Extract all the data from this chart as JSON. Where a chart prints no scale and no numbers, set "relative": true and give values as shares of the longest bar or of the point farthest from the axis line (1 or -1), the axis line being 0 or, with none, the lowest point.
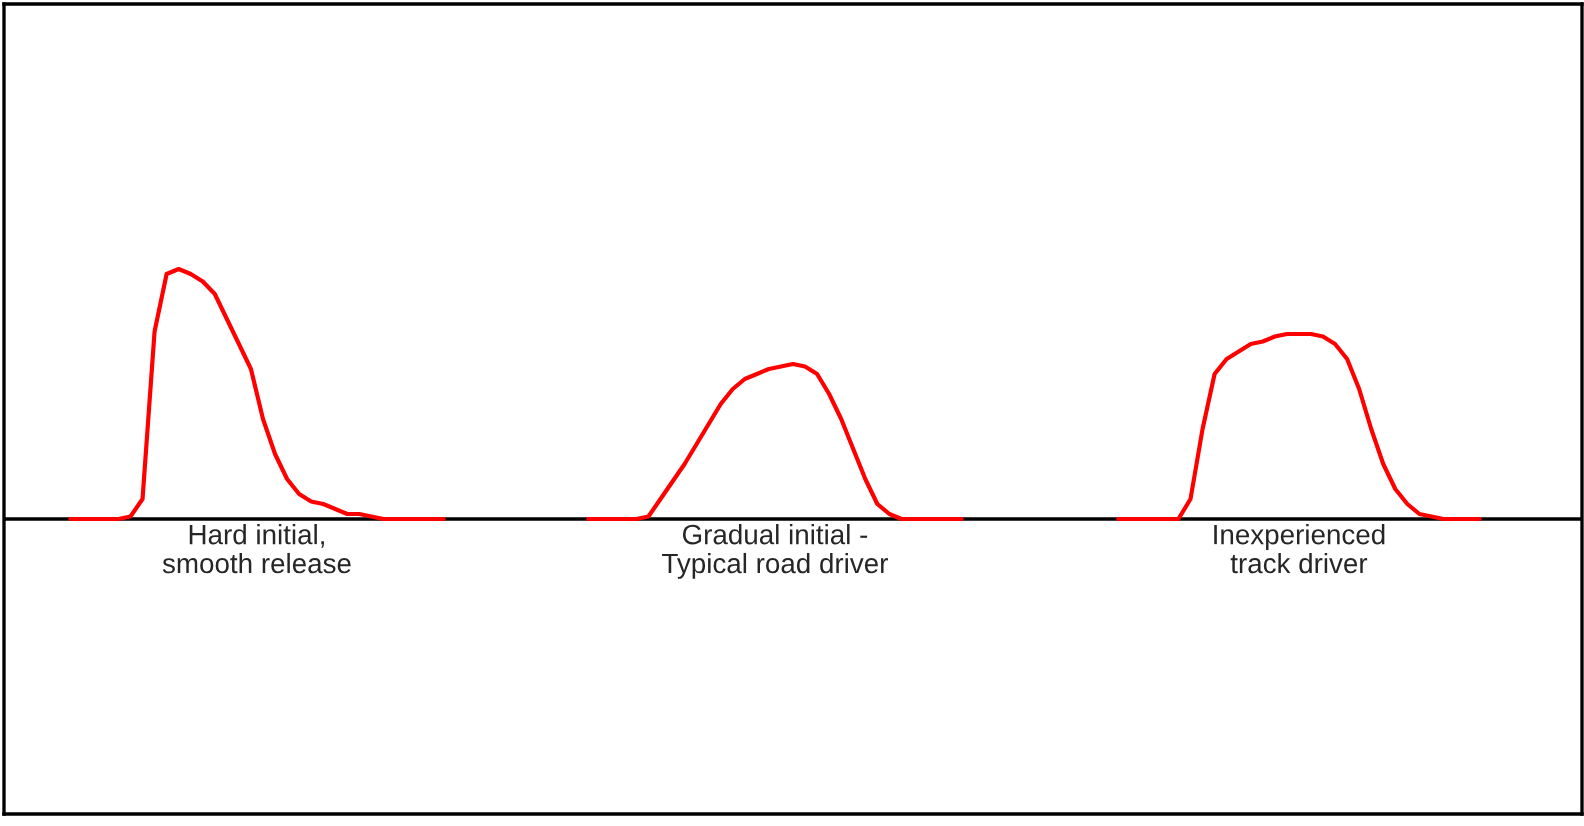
{
  "chart_data": {
    "type": "line",
    "relative": true,
    "categories": [
      null,
      null,
      null,
      null,
      null,
      null,
      null,
      null,
      null,
      null,
      null,
      null,
      null,
      null,
      null,
      null,
      null,
      null,
      null,
      null,
      null,
      null,
      null,
      null,
      null,
      null,
      null,
      null,
      null,
      null,
      null,
      null,
      null,
      null,
      null,
      null,
      null,
      null,
      null,
      null,
      null,
      null,
      null,
      null,
      null,
      null,
      null,
      null,
      null,
      null,
      null,
      null,
      null,
      null,
      null,
      null,
      null,
      null,
      null,
      null,
      null,
      null,
      null,
      null,
      null,
      null,
      null,
      null,
      null,
      null,
      null,
      null,
      null,
      null,
      null,
      null,
      null,
      null,
      null,
      null,
      null,
      null,
      null,
      null,
      null,
      null,
      null,
      null,
      null,
      null,
      null,
      null,
      null,
      null,
      null,
      null,
      null,
      null,
      null,
      null,
      null,
      null,
      null,
      null,
      null,
      null,
      null,
      null,
      null,
      null,
      null,
      null,
      null,
      null,
      null,
      null,
      null,
      null,
      null,
      null,
      null,
      null,
      null,
      null,
      null,
      null,
      null,
      null,
      null,
      null,
      null
    ],
    "series": [
      {
        "color": "#ff0000",
        "values": [
          null,
          null,
          null,
          null,
          null,
          0,
          0,
          0,
          0,
          0,
          0.01,
          0.08,
          0.75,
          0.98,
          1,
          0.98,
          0.95,
          0.9,
          0.8,
          0.7,
          0.6,
          0.4,
          0.26,
          0.16,
          0.1,
          0.07,
          0.06,
          0.04,
          0.02,
          0.02,
          0.01,
          0,
          0,
          0,
          0,
          0,
          0,
          null,
          null,
          null,
          null,
          null,
          null,
          null,
          null,
          null,
          null,
          null,
          null,
          null,
          null,
          null,
          null,
          null,
          null,
          null,
          null,
          null,
          null,
          null,
          null,
          null,
          null,
          null,
          null,
          null,
          null,
          null,
          null,
          null,
          null,
          null,
          null,
          null,
          null,
          null,
          null,
          null,
          null,
          null,
          null,
          null,
          null,
          null,
          null,
          null,
          null,
          null,
          null,
          null,
          null,
          null,
          null,
          null,
          null,
          null,
          null,
          null,
          null,
          null,
          null,
          null,
          null,
          null,
          null,
          null,
          null,
          null,
          null,
          null,
          null,
          null,
          null,
          null,
          null,
          null,
          null,
          null,
          null,
          null,
          null,
          null,
          null,
          null,
          null,
          null,
          null,
          null,
          null,
          null,
          null
        ]
      },
      {
        "color": "#ff0000",
        "values": [
          null,
          null,
          null,
          null,
          null,
          null,
          null,
          null,
          null,
          null,
          null,
          null,
          null,
          null,
          null,
          null,
          null,
          null,
          null,
          null,
          null,
          null,
          null,
          null,
          null,
          null,
          null,
          null,
          null,
          null,
          null,
          null,
          null,
          null,
          null,
          null,
          null,
          null,
          null,
          null,
          null,
          null,
          null,
          null,
          null,
          null,
          null,
          null,
          0,
          0,
          0,
          0,
          0,
          0.01,
          0.08,
          0.15,
          0.22,
          0.3,
          0.38,
          0.46,
          0.52,
          0.56,
          0.58,
          0.6,
          0.61,
          0.62,
          0.61,
          0.58,
          0.5,
          0.4,
          0.28,
          0.16,
          0.06,
          0.02,
          0,
          0,
          0,
          0,
          0,
          0,
          null,
          null,
          null,
          null,
          null,
          null,
          null,
          null,
          null,
          null,
          null,
          null,
          null,
          null,
          null,
          null,
          null,
          null,
          null,
          null,
          null,
          null,
          null,
          null,
          null,
          null,
          null,
          null,
          null,
          null,
          null,
          null,
          null,
          null,
          null,
          null,
          null,
          null,
          null,
          null,
          null,
          null,
          null,
          null,
          null,
          null,
          null,
          null,
          null,
          null,
          null
        ]
      },
      {
        "color": "#ff0000",
        "values": [
          null,
          null,
          null,
          null,
          null,
          null,
          null,
          null,
          null,
          null,
          null,
          null,
          null,
          null,
          null,
          null,
          null,
          null,
          null,
          null,
          null,
          null,
          null,
          null,
          null,
          null,
          null,
          null,
          null,
          null,
          null,
          null,
          null,
          null,
          null,
          null,
          null,
          null,
          null,
          null,
          null,
          null,
          null,
          null,
          null,
          null,
          null,
          null,
          null,
          null,
          null,
          null,
          null,
          null,
          null,
          null,
          null,
          null,
          null,
          null,
          null,
          null,
          null,
          null,
          null,
          null,
          null,
          null,
          null,
          null,
          null,
          null,
          null,
          null,
          null,
          null,
          null,
          null,
          null,
          null,
          null,
          null,
          null,
          null,
          null,
          null,
          null,
          null,
          null,
          null,
          null,
          null,
          0,
          0,
          0,
          0,
          0,
          0,
          0.08,
          0.36,
          0.58,
          0.64,
          0.67,
          0.7,
          0.71,
          0.73,
          0.74,
          0.74,
          0.74,
          0.73,
          0.7,
          0.64,
          0.52,
          0.36,
          0.22,
          0.12,
          0.06,
          0.02,
          0.01,
          0,
          0,
          0,
          0,
          null,
          null,
          null,
          null,
          null,
          null,
          null,
          null
        ]
      }
    ],
    "ref_lines": [
      {
        "axis": "y",
        "value": 0,
        "color": "#000000"
      }
    ],
    "annotations": [
      "Hard initial,\nsmooth release",
      "Gradual initial -\nTypical road driver",
      "Inexperienced\ntrack driver"
    ]
  }
}
